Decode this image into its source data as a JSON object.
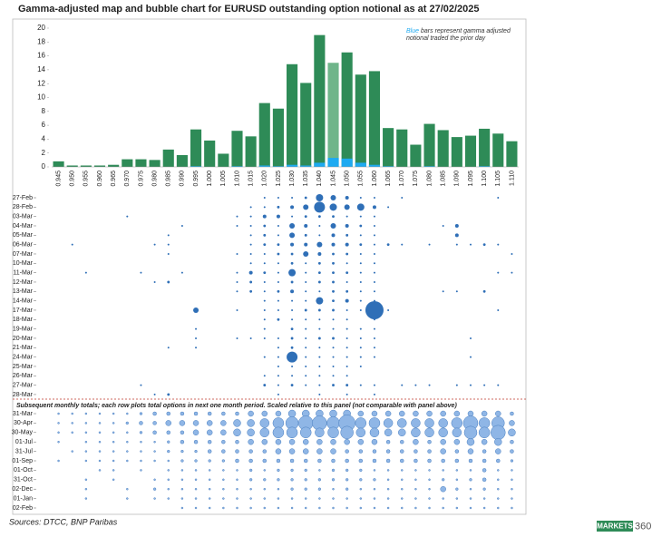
{
  "chart_data": {
    "type": "bar",
    "title": "Gamma-adjusted map and bubble chart for EURUSD outstanding option notional as at 27/02/2025",
    "annotation": {
      "highlight": "Blue",
      "lines": [
        "bars represent gamma adjusted",
        "notional traded the prior day"
      ]
    },
    "categories": [
      "0.945",
      "0.950",
      "0.955",
      "0.960",
      "0.965",
      "0.970",
      "0.975",
      "0.980",
      "0.985",
      "0.990",
      "0.995",
      "1.000",
      "1.005",
      "1.010",
      "1.015",
      "1.020",
      "1.025",
      "1.030",
      "1.035",
      "1.040",
      "1.045",
      "1.050",
      "1.055",
      "1.060",
      "1.065",
      "1.070",
      "1.075",
      "1.080",
      "1.085",
      "1.090",
      "1.095",
      "1.100",
      "1.105",
      "1.110"
    ],
    "values": [
      0.8,
      0.2,
      0.2,
      0.2,
      0.3,
      1.1,
      1.1,
      1.0,
      2.5,
      1.7,
      5.4,
      3.8,
      1.9,
      5.2,
      4.4,
      9.2,
      8.4,
      14.8,
      12.1,
      19,
      15,
      16.5,
      13.3,
      13.8,
      5.6,
      5.4,
      3.2,
      6.2,
      5.3,
      4.3,
      4.5,
      5.5,
      4.8,
      3.7
    ],
    "color": "#2e8b57",
    "highlight_index": 20,
    "highlight_color": "#6fb58a",
    "blue_values": [
      0,
      0,
      0,
      0,
      0,
      0,
      0,
      0,
      0,
      0,
      0.1,
      0,
      0,
      0.1,
      0,
      0.2,
      0.1,
      0.3,
      0.2,
      0.6,
      1.3,
      1.2,
      0.6,
      0.3,
      0.1,
      0,
      0,
      0.1,
      0,
      0,
      0,
      0.1,
      0,
      0
    ],
    "blue_color": "#1eaaf1",
    "ylim": [
      0,
      20
    ],
    "yticks": [
      0,
      2,
      4,
      6,
      8,
      10,
      12,
      14,
      16,
      18,
      20
    ],
    "bubbles": {
      "color": "#2f6fb7",
      "rows": [
        "27-Feb",
        "28-Feb",
        "03-Mar",
        "04-Mar",
        "05-Mar",
        "06-Mar",
        "07-Mar",
        "10-Mar",
        "11-Mar",
        "12-Mar",
        "13-Mar",
        "14-Mar",
        "17-Mar",
        "18-Mar",
        "19-Mar",
        "20-Mar",
        "21-Mar",
        "24-Mar",
        "25-Mar",
        "26-Mar",
        "27-Mar",
        "28-Mar"
      ],
      "values": [
        [
          0,
          0,
          0,
          0,
          0,
          0,
          0,
          0,
          0,
          0,
          0,
          0,
          0,
          0,
          0,
          1,
          1,
          1,
          2,
          16,
          9,
          4,
          1,
          1,
          0,
          1,
          0,
          0,
          0,
          0,
          0,
          0,
          1,
          0
        ],
        [
          0,
          0,
          0,
          0,
          0,
          0,
          0,
          0,
          0,
          0,
          0,
          0,
          0,
          0,
          1,
          1,
          2,
          4,
          9,
          36,
          16,
          9,
          16,
          4,
          1,
          0,
          0,
          0,
          0,
          0,
          0,
          0,
          0,
          0
        ],
        [
          0,
          0,
          0,
          0,
          0,
          1,
          0,
          0,
          0,
          0,
          0,
          0,
          0,
          1,
          1,
          4,
          4,
          1,
          2,
          2,
          2,
          1,
          1,
          1,
          0,
          0,
          0,
          0,
          0,
          0,
          0,
          0,
          0,
          0
        ],
        [
          0,
          0,
          0,
          0,
          0,
          0,
          0,
          0,
          0,
          1,
          0,
          0,
          0,
          1,
          1,
          2,
          1,
          9,
          4,
          1,
          9,
          4,
          2,
          1,
          0,
          0,
          0,
          0,
          1,
          4,
          0,
          0,
          0,
          0
        ],
        [
          0,
          0,
          0,
          0,
          0,
          0,
          0,
          0,
          1,
          0,
          0,
          0,
          0,
          0,
          1,
          2,
          1,
          9,
          2,
          1,
          4,
          2,
          1,
          1,
          0,
          0,
          0,
          0,
          0,
          4,
          0,
          0,
          0,
          0
        ],
        [
          0,
          1,
          0,
          0,
          0,
          0,
          0,
          1,
          1,
          0,
          0,
          0,
          0,
          0,
          1,
          2,
          2,
          4,
          4,
          9,
          4,
          4,
          2,
          1,
          2,
          1,
          0,
          1,
          0,
          1,
          1,
          2,
          1,
          0
        ],
        [
          0,
          0,
          0,
          0,
          0,
          0,
          0,
          0,
          1,
          0,
          0,
          0,
          0,
          1,
          1,
          1,
          2,
          2,
          9,
          4,
          2,
          2,
          1,
          1,
          0,
          0,
          0,
          0,
          0,
          0,
          0,
          0,
          0,
          1
        ],
        [
          0,
          0,
          0,
          0,
          0,
          0,
          0,
          0,
          0,
          0,
          0,
          0,
          0,
          0,
          1,
          1,
          1,
          2,
          1,
          2,
          2,
          1,
          1,
          1,
          0,
          0,
          0,
          0,
          0,
          0,
          0,
          0,
          0,
          0
        ],
        [
          0,
          0,
          1,
          0,
          0,
          0,
          1,
          0,
          0,
          1,
          0,
          0,
          0,
          1,
          4,
          2,
          1,
          16,
          1,
          2,
          2,
          2,
          1,
          1,
          0,
          0,
          0,
          0,
          0,
          0,
          0,
          0,
          1,
          1
        ],
        [
          0,
          0,
          0,
          0,
          0,
          0,
          0,
          1,
          2,
          0,
          0,
          0,
          0,
          1,
          2,
          1,
          1,
          2,
          1,
          2,
          2,
          1,
          1,
          1,
          0,
          0,
          0,
          0,
          0,
          0,
          0,
          0,
          0,
          0
        ],
        [
          0,
          0,
          0,
          0,
          0,
          0,
          0,
          0,
          0,
          0,
          0,
          0,
          0,
          1,
          2,
          1,
          2,
          4,
          1,
          1,
          2,
          2,
          1,
          1,
          0,
          0,
          0,
          0,
          1,
          1,
          0,
          2,
          0,
          0
        ],
        [
          0,
          0,
          0,
          0,
          0,
          0,
          0,
          0,
          0,
          0,
          0,
          0,
          0,
          0,
          0,
          1,
          1,
          1,
          1,
          16,
          2,
          4,
          1,
          1,
          0,
          0,
          0,
          0,
          0,
          0,
          0,
          0,
          0,
          0
        ],
        [
          0,
          0,
          0,
          0,
          0,
          0,
          0,
          0,
          0,
          0,
          9,
          0,
          0,
          1,
          0,
          1,
          1,
          1,
          2,
          2,
          2,
          1,
          1,
          100,
          1,
          0,
          0,
          0,
          0,
          0,
          0,
          0,
          1,
          0
        ],
        [
          0,
          0,
          0,
          0,
          0,
          0,
          0,
          0,
          0,
          0,
          0,
          0,
          0,
          0,
          0,
          1,
          2,
          1,
          1,
          1,
          1,
          1,
          0,
          1,
          0,
          0,
          0,
          0,
          0,
          0,
          0,
          0,
          0,
          0
        ],
        [
          0,
          0,
          0,
          0,
          0,
          0,
          0,
          0,
          0,
          0,
          1,
          0,
          0,
          0,
          0,
          1,
          0,
          2,
          1,
          1,
          1,
          1,
          1,
          1,
          0,
          0,
          0,
          0,
          0,
          0,
          0,
          0,
          0,
          0
        ],
        [
          0,
          0,
          0,
          0,
          0,
          0,
          0,
          0,
          0,
          0,
          1,
          0,
          0,
          1,
          1,
          1,
          1,
          2,
          1,
          2,
          2,
          1,
          1,
          1,
          0,
          0,
          0,
          0,
          0,
          0,
          1,
          0,
          0,
          0
        ],
        [
          0,
          0,
          0,
          0,
          0,
          0,
          0,
          0,
          1,
          0,
          1,
          0,
          0,
          0,
          0,
          0,
          1,
          2,
          1,
          1,
          1,
          1,
          1,
          1,
          0,
          0,
          0,
          0,
          0,
          0,
          0,
          0,
          0,
          0
        ],
        [
          0,
          0,
          0,
          0,
          0,
          0,
          0,
          0,
          0,
          0,
          0,
          0,
          0,
          0,
          0,
          1,
          1,
          36,
          1,
          1,
          1,
          1,
          1,
          1,
          0,
          0,
          0,
          0,
          0,
          0,
          1,
          0,
          0,
          0
        ],
        [
          0,
          0,
          0,
          0,
          0,
          0,
          0,
          0,
          0,
          0,
          0,
          0,
          0,
          0,
          0,
          0,
          1,
          1,
          1,
          1,
          1,
          1,
          1,
          0,
          0,
          0,
          0,
          0,
          0,
          0,
          0,
          0,
          0,
          0
        ],
        [
          0,
          0,
          0,
          0,
          0,
          0,
          0,
          0,
          0,
          0,
          0,
          0,
          0,
          0,
          0,
          1,
          1,
          1,
          1,
          1,
          1,
          1,
          0,
          0,
          0,
          0,
          0,
          0,
          0,
          0,
          0,
          0,
          0,
          0
        ],
        [
          0,
          0,
          0,
          0,
          0,
          0,
          1,
          0,
          0,
          0,
          0,
          0,
          0,
          0,
          0,
          2,
          1,
          2,
          1,
          1,
          2,
          2,
          1,
          1,
          0,
          1,
          1,
          1,
          0,
          1,
          1,
          1,
          1,
          0
        ],
        [
          0,
          0,
          0,
          0,
          0,
          0,
          0,
          1,
          2,
          0,
          0,
          0,
          0,
          0,
          0,
          0,
          1,
          0,
          0,
          1,
          0,
          1,
          0,
          1,
          0,
          0,
          0,
          0,
          0,
          0,
          0,
          0,
          0,
          0
        ]
      ]
    },
    "monthly_note": "Subsequent monthly totals; each row plots total options in next one month period. Scaled relative to this panel (not comparable with panel above)",
    "monthly_bubbles": {
      "color": "#8fb6e6",
      "stroke": "#4a7fc0",
      "rows": [
        "31-Mar",
        "30-Apr",
        "30-May",
        "01-Jul",
        "31-Jul",
        "01-Sep",
        "01-Oct",
        "31-Oct",
        "02-Dec",
        "01-Jan",
        "02-Feb"
      ],
      "values": [
        [
          1,
          1,
          1,
          1,
          1,
          1,
          2,
          4,
          4,
          4,
          4,
          4,
          4,
          4,
          9,
          9,
          9,
          16,
          16,
          16,
          16,
          16,
          9,
          9,
          9,
          9,
          9,
          9,
          9,
          9,
          9,
          9,
          9,
          4
        ],
        [
          1,
          1,
          1,
          1,
          1,
          2,
          4,
          4,
          9,
          9,
          9,
          9,
          9,
          16,
          16,
          25,
          36,
          49,
          64,
          64,
          49,
          81,
          36,
          36,
          25,
          25,
          25,
          25,
          25,
          36,
          64,
          36,
          49,
          9
        ],
        [
          1,
          1,
          1,
          1,
          1,
          1,
          2,
          4,
          4,
          4,
          9,
          9,
          9,
          16,
          16,
          25,
          36,
          36,
          36,
          25,
          36,
          49,
          25,
          25,
          16,
          16,
          25,
          25,
          25,
          25,
          49,
          36,
          64,
          16
        ],
        [
          1,
          0,
          1,
          1,
          1,
          1,
          1,
          1,
          2,
          4,
          4,
          4,
          4,
          4,
          9,
          9,
          9,
          9,
          9,
          9,
          9,
          9,
          9,
          9,
          4,
          4,
          9,
          4,
          9,
          9,
          16,
          9,
          16,
          4
        ],
        [
          0,
          1,
          1,
          1,
          1,
          1,
          1,
          1,
          2,
          2,
          2,
          4,
          4,
          4,
          4,
          4,
          9,
          9,
          9,
          9,
          9,
          4,
          4,
          4,
          4,
          4,
          4,
          4,
          9,
          4,
          9,
          4,
          9,
          4
        ],
        [
          1,
          0,
          1,
          1,
          1,
          1,
          1,
          1,
          1,
          2,
          2,
          2,
          2,
          4,
          4,
          4,
          4,
          4,
          4,
          4,
          4,
          4,
          4,
          4,
          4,
          4,
          4,
          4,
          4,
          4,
          4,
          4,
          4,
          2
        ],
        [
          0,
          0,
          0,
          1,
          1,
          0,
          1,
          0,
          1,
          1,
          1,
          1,
          1,
          1,
          2,
          1,
          2,
          2,
          2,
          1,
          2,
          2,
          2,
          1,
          1,
          1,
          1,
          1,
          1,
          1,
          1,
          4,
          1,
          1
        ],
        [
          0,
          0,
          1,
          0,
          1,
          0,
          0,
          1,
          1,
          1,
          1,
          1,
          1,
          1,
          2,
          2,
          2,
          2,
          2,
          2,
          2,
          2,
          2,
          2,
          1,
          1,
          1,
          1,
          2,
          1,
          2,
          4,
          1,
          1
        ],
        [
          0,
          0,
          1,
          0,
          0,
          1,
          0,
          2,
          1,
          1,
          1,
          1,
          1,
          1,
          1,
          1,
          1,
          2,
          2,
          2,
          1,
          2,
          1,
          1,
          1,
          1,
          1,
          1,
          9,
          2,
          1,
          2,
          1,
          1
        ],
        [
          0,
          0,
          1,
          0,
          0,
          1,
          0,
          1,
          1,
          1,
          1,
          1,
          1,
          1,
          1,
          1,
          1,
          1,
          1,
          1,
          1,
          1,
          1,
          1,
          1,
          1,
          1,
          1,
          1,
          1,
          1,
          1,
          1,
          1
        ],
        [
          0,
          0,
          0,
          0,
          0,
          0,
          0,
          0,
          0,
          1,
          1,
          1,
          1,
          1,
          1,
          1,
          1,
          1,
          1,
          1,
          1,
          1,
          1,
          1,
          1,
          1,
          1,
          1,
          1,
          1,
          1,
          1,
          1,
          1
        ]
      ]
    },
    "source": "Sources: DTCC, BNP Paribas",
    "logo": {
      "box": "MARKETS",
      "text": "360"
    }
  }
}
